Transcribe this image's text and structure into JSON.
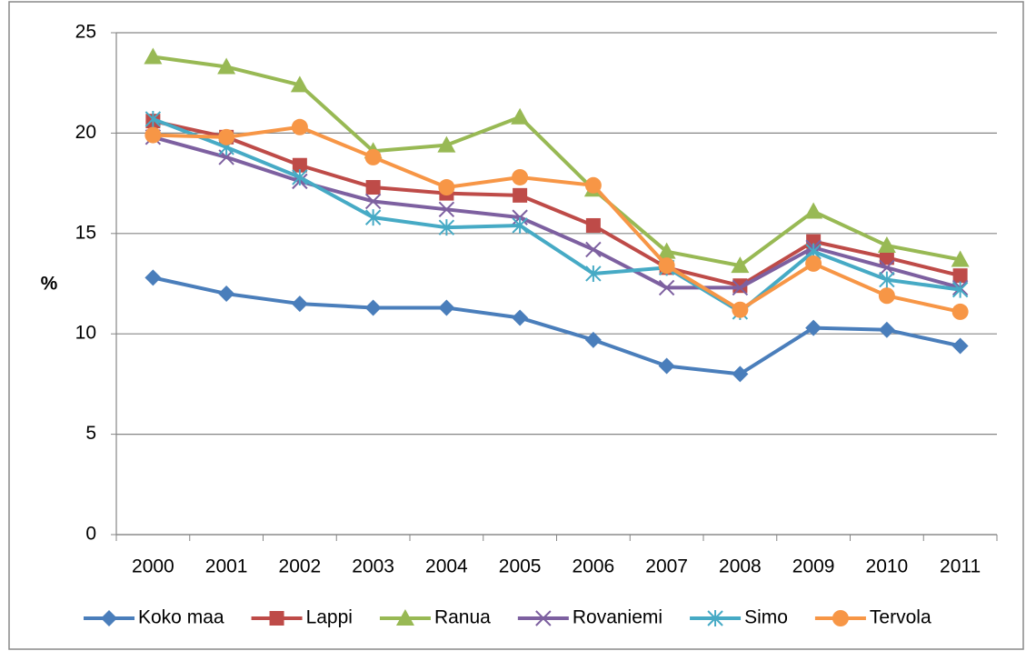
{
  "chart_data": {
    "type": "line",
    "ylabel": "%",
    "categories": [
      "2000",
      "2001",
      "2002",
      "2003",
      "2004",
      "2005",
      "2006",
      "2007",
      "2008",
      "2009",
      "2010",
      "2011"
    ],
    "ylim": [
      0,
      25
    ],
    "yticks": [
      0,
      5,
      10,
      15,
      20,
      25
    ],
    "grid": true,
    "legend": "bottom",
    "series": [
      {
        "name": "Koko maa",
        "color": "#4a7ebb",
        "marker": "diamond",
        "values": [
          12.8,
          12.0,
          11.5,
          11.3,
          11.3,
          10.8,
          9.7,
          8.4,
          8.0,
          10.3,
          10.2,
          9.4
        ]
      },
      {
        "name": "Lappi",
        "color": "#be4b48",
        "marker": "square",
        "values": [
          20.6,
          19.8,
          18.4,
          17.3,
          17.0,
          16.9,
          15.4,
          13.3,
          12.4,
          14.6,
          13.8,
          12.9
        ]
      },
      {
        "name": "Ranua",
        "color": "#98b954",
        "marker": "triangle",
        "values": [
          23.8,
          23.3,
          22.4,
          19.1,
          19.4,
          20.8,
          17.2,
          14.1,
          13.4,
          16.1,
          14.4,
          13.7
        ]
      },
      {
        "name": "Rovaniemi",
        "color": "#7d60a0",
        "marker": "x",
        "values": [
          19.8,
          18.8,
          17.6,
          16.6,
          16.2,
          15.8,
          14.2,
          12.3,
          12.3,
          14.3,
          13.3,
          12.3
        ]
      },
      {
        "name": "Simo",
        "color": "#46aac5",
        "marker": "star",
        "values": [
          20.7,
          19.3,
          17.8,
          15.8,
          15.3,
          15.4,
          13.0,
          13.3,
          11.1,
          14.1,
          12.7,
          12.2
        ]
      },
      {
        "name": "Tervola",
        "color": "#f79646",
        "marker": "circle",
        "values": [
          19.9,
          19.8,
          20.3,
          18.8,
          17.3,
          17.8,
          17.4,
          13.4,
          11.2,
          13.5,
          11.9,
          11.1
        ]
      }
    ]
  }
}
